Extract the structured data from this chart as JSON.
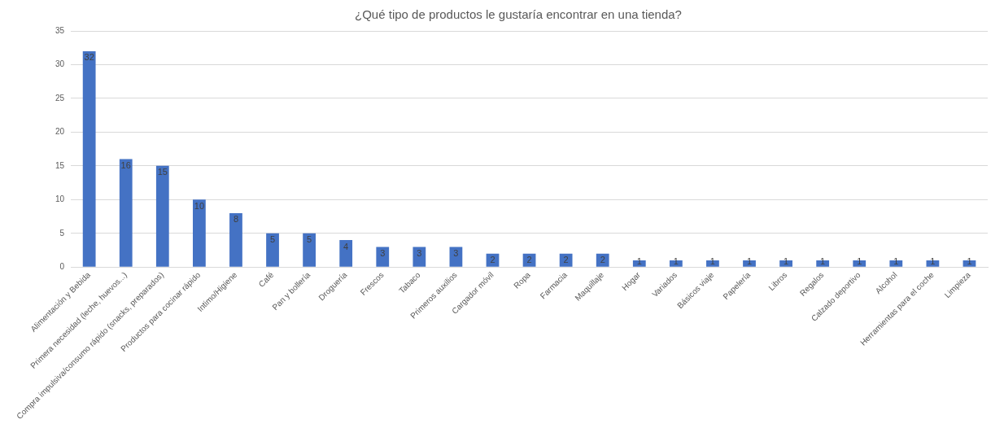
{
  "chart_data": {
    "type": "bar",
    "title": "¿Qué tipo de productos le gustaría encontrar en una tienda?",
    "categories": [
      "Alimentación y Bebida",
      "Primera necesidad (leche, huevos...)",
      "Compra impulsiva/consumo rápido (snacks, preparados)",
      "Productos para cocinar rápido",
      "Intimo/Higiene",
      "Café",
      "Pan y bollería",
      "Droguería",
      "Frescos",
      "Tabaco",
      "Primeros auxilios",
      "Cargador móvil",
      "Ropa",
      "Farmacia",
      "Maquillaje",
      "Hogar",
      "Variados",
      "Básicos viaje",
      "Papelería",
      "Libros",
      "Regalos",
      "Calzado deportivo",
      "Alcohol",
      "Herramientas para el coche",
      "Limpieza"
    ],
    "values": [
      32,
      16,
      15,
      10,
      8,
      5,
      5,
      4,
      3,
      3,
      3,
      2,
      2,
      2,
      2,
      1,
      1,
      1,
      1,
      1,
      1,
      1,
      1,
      1,
      1
    ],
    "color": "#4472c4",
    "ylim": [
      0,
      35
    ],
    "yticks": [
      0,
      5,
      10,
      15,
      20,
      25,
      30,
      35
    ],
    "grid": "y",
    "data_labels": true
  }
}
